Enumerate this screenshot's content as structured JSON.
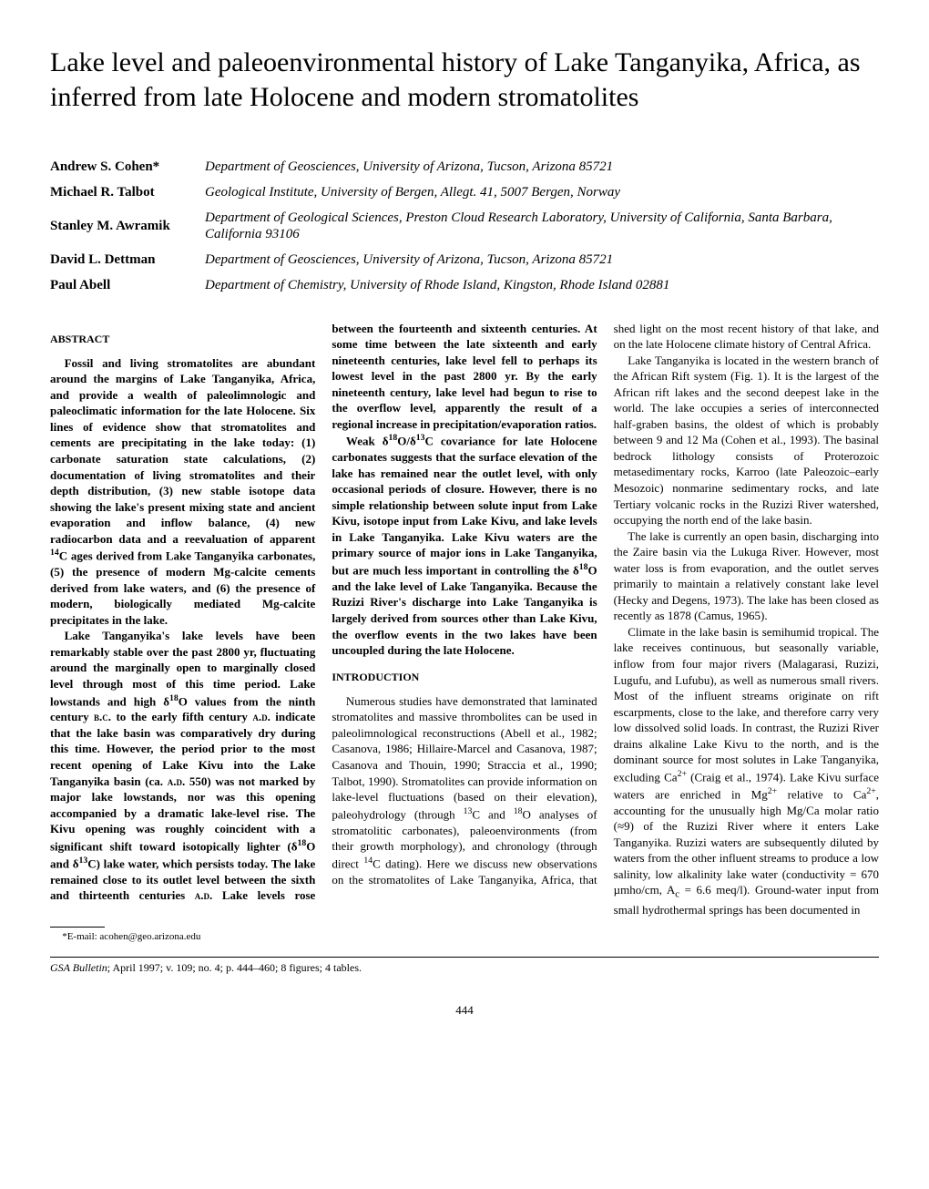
{
  "title": "Lake level and paleoenvironmental history of Lake Tanganyika, Africa, as inferred from late Holocene and modern stromatolites",
  "authors": [
    {
      "name": "Andrew S. Cohen*",
      "affil": "Department of Geosciences, University of Arizona, Tucson, Arizona 85721"
    },
    {
      "name": "Michael R. Talbot",
      "affil": "Geological Institute, University of Bergen, Allegt. 41, 5007 Bergen, Norway"
    },
    {
      "name": "Stanley M. Awramik",
      "affil": "Department of Geological Sciences, Preston Cloud Research Laboratory, University of California, Santa Barbara, California 93106"
    },
    {
      "name": "David L. Dettman",
      "affil": "Department of Geosciences, University of Arizona, Tucson, Arizona 85721"
    },
    {
      "name": "Paul Abell",
      "affil": "Department of Chemistry, University of Rhode Island, Kingston, Rhode Island 02881"
    }
  ],
  "abstract_head": "ABSTRACT",
  "intro_head": "INTRODUCTION",
  "footnote": "*E-mail: acohen@geo.arizona.edu",
  "journal": "GSA Bulletin",
  "journal_rest": "; April 1997; v. 109; no. 4; p. 444–460; 8 figures; 4 tables.",
  "page": "444"
}
